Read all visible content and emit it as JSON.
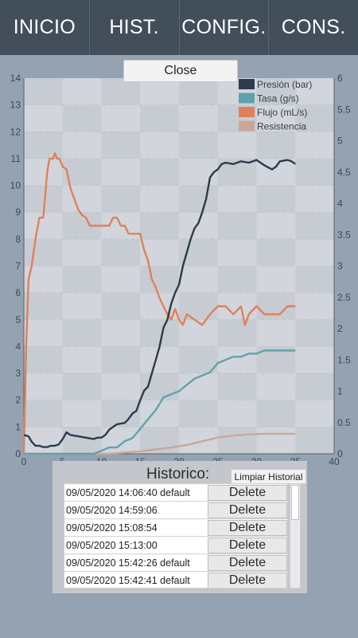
{
  "tabs": [
    {
      "label": "INICIO"
    },
    {
      "label": "HIST."
    },
    {
      "label": "CONFIG."
    },
    {
      "label": "CONS."
    }
  ],
  "close_button": "Close",
  "historial": {
    "title": "Historico:",
    "clear_button": "Limpiar Historial",
    "delete_label": "Delete",
    "entries": [
      "09/05/2020 14:06:40 default",
      "09/05/2020 14:59:06",
      "09/05/2020 15:08:54",
      "09/05/2020 15:13:00",
      "09/05/2020 15:42:26 default",
      "09/05/2020 15:42:41 default"
    ]
  },
  "colors": {
    "background": "#94a2b1",
    "tabbar": "#434e5b",
    "presion": "#2b3b4b",
    "tasa": "#5fa3a8",
    "flujo": "#e0805a",
    "resistencia": "#c9a797"
  },
  "chart_data": {
    "type": "line",
    "x_ticks": [
      "0",
      "5",
      "10",
      "15",
      "20",
      "25",
      "30",
      "35",
      "40"
    ],
    "y_left_ticks": [
      "0",
      "1",
      "2",
      "3",
      "4",
      "5",
      "6",
      "7",
      "8",
      "9",
      "10",
      "11",
      "12",
      "13",
      "14"
    ],
    "y_right_ticks": [
      "0",
      "0.5",
      "1",
      "1.5",
      "2",
      "2.5",
      "3",
      "3.5",
      "4",
      "4.5",
      "5",
      "5.5",
      "6"
    ],
    "xlim": [
      0,
      40
    ],
    "ylim_left": [
      0,
      14
    ],
    "ylim_right": [
      0,
      6
    ],
    "legend_position": "top-right",
    "grid": true,
    "series": [
      {
        "name": "Presión (bar)",
        "color": "#2b3b4b",
        "axis": "left",
        "points": [
          [
            0,
            0.7
          ],
          [
            0.6,
            0.65
          ],
          [
            1,
            0.45
          ],
          [
            1.5,
            0.3
          ],
          [
            2,
            0.3
          ],
          [
            2.5,
            0.25
          ],
          [
            3,
            0.25
          ],
          [
            3.5,
            0.3
          ],
          [
            4,
            0.3
          ],
          [
            4.5,
            0.35
          ],
          [
            5,
            0.55
          ],
          [
            5.5,
            0.8
          ],
          [
            6,
            0.7
          ],
          [
            7,
            0.65
          ],
          [
            8,
            0.6
          ],
          [
            9,
            0.55
          ],
          [
            9.5,
            0.6
          ],
          [
            10,
            0.6
          ],
          [
            10.5,
            0.7
          ],
          [
            11,
            0.9
          ],
          [
            11.5,
            1.0
          ],
          [
            12,
            1.1
          ],
          [
            13,
            1.15
          ],
          [
            13.5,
            1.3
          ],
          [
            14,
            1.5
          ],
          [
            14.5,
            1.6
          ],
          [
            15,
            2.0
          ],
          [
            15.5,
            2.35
          ],
          [
            16,
            2.5
          ],
          [
            16.5,
            3.0
          ],
          [
            17,
            3.5
          ],
          [
            17.5,
            4.0
          ],
          [
            18,
            4.7
          ],
          [
            18.5,
            5.0
          ],
          [
            19,
            5.6
          ],
          [
            19.5,
            6.0
          ],
          [
            20,
            6.3
          ],
          [
            20.5,
            7.0
          ],
          [
            21,
            7.5
          ],
          [
            21.5,
            8.0
          ],
          [
            22,
            8.4
          ],
          [
            22.5,
            8.6
          ],
          [
            23,
            9.0
          ],
          [
            23.5,
            9.5
          ],
          [
            24,
            10.3
          ],
          [
            24.5,
            10.5
          ],
          [
            25,
            10.6
          ],
          [
            25.5,
            10.8
          ],
          [
            26,
            10.85
          ],
          [
            27,
            10.8
          ],
          [
            28,
            10.9
          ],
          [
            29,
            10.85
          ],
          [
            30,
            10.95
          ],
          [
            31,
            10.75
          ],
          [
            32,
            10.6
          ],
          [
            32.5,
            10.7
          ],
          [
            33,
            10.9
          ],
          [
            34,
            10.95
          ],
          [
            34.5,
            10.9
          ],
          [
            35,
            10.8
          ]
        ]
      },
      {
        "name": "Tasa (g/s)",
        "color": "#5fa3a8",
        "axis": "right",
        "points": [
          [
            0,
            0
          ],
          [
            9,
            0
          ],
          [
            10,
            0.05
          ],
          [
            11,
            0.1
          ],
          [
            12,
            0.1
          ],
          [
            13,
            0.2
          ],
          [
            14,
            0.25
          ],
          [
            15,
            0.4
          ],
          [
            16,
            0.55
          ],
          [
            17,
            0.7
          ],
          [
            17.5,
            0.8
          ],
          [
            18,
            0.9
          ],
          [
            19,
            0.95
          ],
          [
            20,
            1.0
          ],
          [
            21,
            1.1
          ],
          [
            22,
            1.2
          ],
          [
            23,
            1.25
          ],
          [
            24,
            1.3
          ],
          [
            25,
            1.45
          ],
          [
            26,
            1.5
          ],
          [
            27,
            1.55
          ],
          [
            28,
            1.55
          ],
          [
            29,
            1.6
          ],
          [
            30,
            1.6
          ],
          [
            31,
            1.65
          ],
          [
            32,
            1.65
          ],
          [
            33,
            1.65
          ],
          [
            34,
            1.65
          ],
          [
            35,
            1.65
          ]
        ]
      },
      {
        "name": "Flujo (mL/s)",
        "color": "#e0805a",
        "axis": "left",
        "points": [
          [
            0,
            0
          ],
          [
            0.3,
            4
          ],
          [
            0.6,
            6.5
          ],
          [
            1,
            7
          ],
          [
            1.5,
            8
          ],
          [
            2,
            8.8
          ],
          [
            2.5,
            8.8
          ],
          [
            3,
            10.5
          ],
          [
            3.3,
            11
          ],
          [
            3.8,
            11
          ],
          [
            4,
            11.2
          ],
          [
            4.3,
            11
          ],
          [
            4.6,
            11
          ],
          [
            5,
            10.7
          ],
          [
            5.5,
            10.6
          ],
          [
            6,
            9.9
          ],
          [
            6.5,
            9.5
          ],
          [
            7,
            9.1
          ],
          [
            7.5,
            8.9
          ],
          [
            8,
            8.8
          ],
          [
            8.5,
            8.5
          ],
          [
            9,
            8.5
          ],
          [
            10,
            8.5
          ],
          [
            11,
            8.5
          ],
          [
            11.5,
            8.8
          ],
          [
            12,
            8.8
          ],
          [
            12.5,
            8.5
          ],
          [
            13,
            8.5
          ],
          [
            13.5,
            8.2
          ],
          [
            14,
            8.2
          ],
          [
            15,
            8.2
          ],
          [
            15.5,
            7.6
          ],
          [
            16,
            7.2
          ],
          [
            16.5,
            6.5
          ],
          [
            17,
            6.2
          ],
          [
            17.5,
            5.8
          ],
          [
            18,
            5.5
          ],
          [
            18.5,
            5.2
          ],
          [
            19,
            5.0
          ],
          [
            19.5,
            5.4
          ],
          [
            20,
            5.0
          ],
          [
            20.5,
            4.8
          ],
          [
            21,
            5.2
          ],
          [
            22,
            5.0
          ],
          [
            23,
            4.8
          ],
          [
            24,
            5.2
          ],
          [
            25,
            5.5
          ],
          [
            26,
            5.5
          ],
          [
            27,
            5.2
          ],
          [
            28,
            5.5
          ],
          [
            28.5,
            4.8
          ],
          [
            29,
            5.2
          ],
          [
            30,
            5.5
          ],
          [
            31,
            5.2
          ],
          [
            32,
            5.2
          ],
          [
            33,
            5.2
          ],
          [
            34,
            5.5
          ],
          [
            35,
            5.5
          ]
        ]
      },
      {
        "name": "Resistencia",
        "color": "#c9a797",
        "axis": "right",
        "points": [
          [
            0,
            0
          ],
          [
            11,
            0
          ],
          [
            13,
            0.02
          ],
          [
            15,
            0.04
          ],
          [
            17,
            0.07
          ],
          [
            19,
            0.1
          ],
          [
            21,
            0.14
          ],
          [
            23,
            0.2
          ],
          [
            25,
            0.26
          ],
          [
            27,
            0.29
          ],
          [
            29,
            0.31
          ],
          [
            31,
            0.32
          ],
          [
            33,
            0.32
          ],
          [
            35,
            0.32
          ]
        ]
      }
    ]
  }
}
